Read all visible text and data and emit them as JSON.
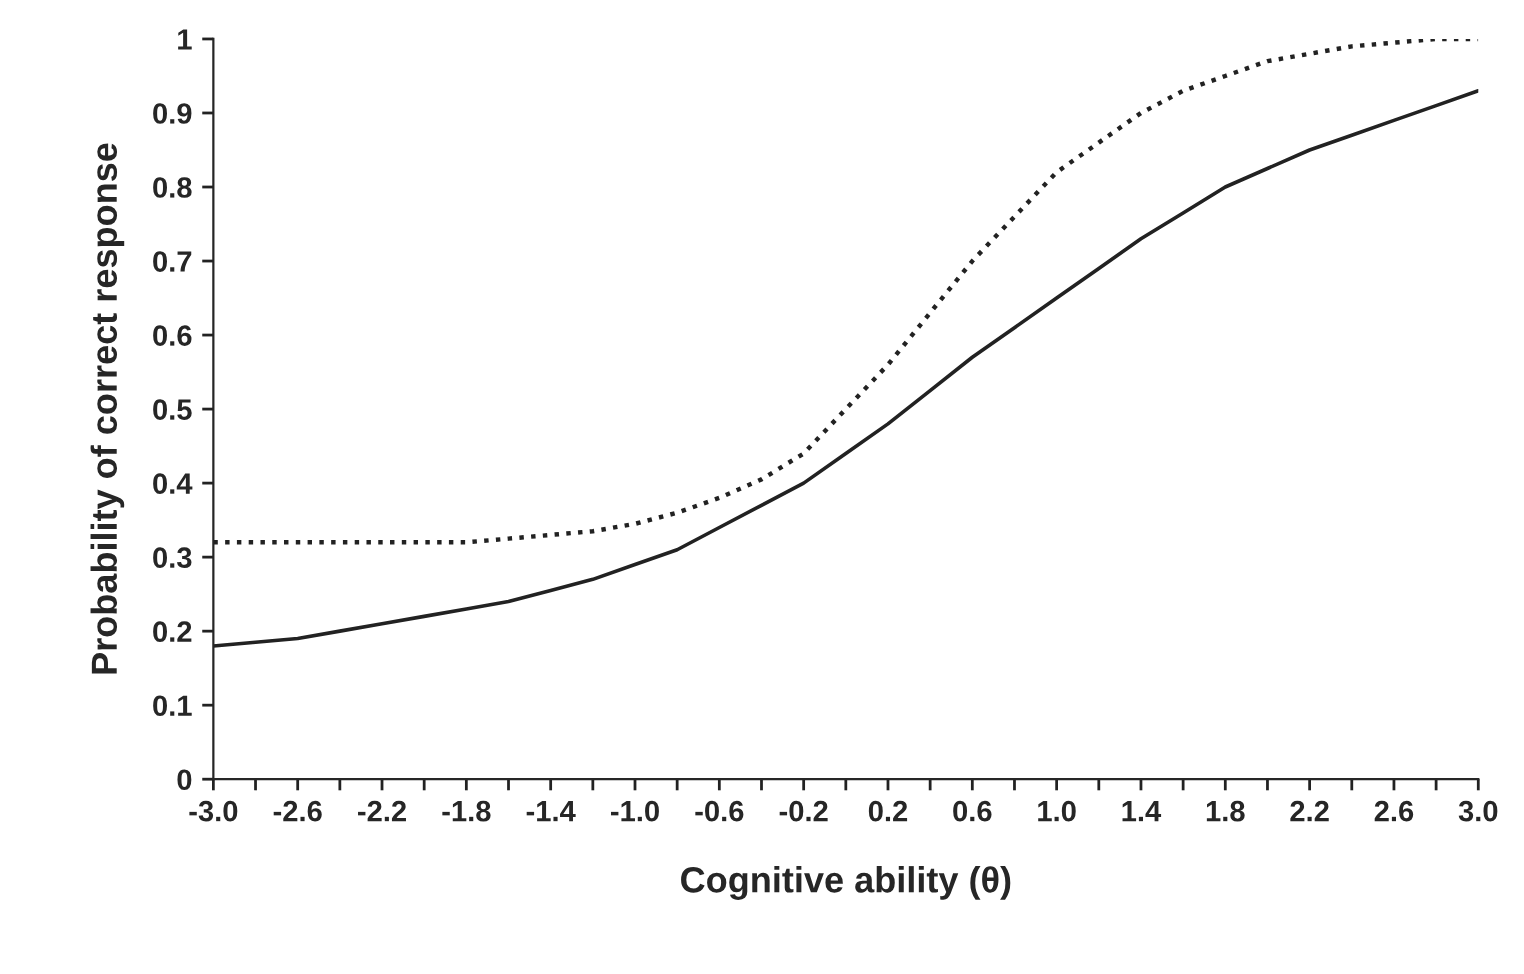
{
  "chart_data": {
    "type": "line",
    "xlabel": "Cognitive ability (θ)",
    "ylabel": "Probability of correct response",
    "x": [
      -3.0,
      -2.8,
      -2.6,
      -2.4,
      -2.2,
      -2.0,
      -1.8,
      -1.6,
      -1.4,
      -1.2,
      -1.0,
      -0.8,
      -0.6,
      -0.4,
      -0.2,
      0.0,
      0.2,
      0.4,
      0.6,
      0.8,
      1.0,
      1.2,
      1.4,
      1.6,
      1.8,
      2.0,
      2.2,
      2.4,
      2.6,
      2.8,
      3.0
    ],
    "series": [
      {
        "color": "#222222",
        "line_style": "solid",
        "values": [
          0.18,
          0.185,
          0.19,
          0.2,
          0.21,
          0.22,
          0.23,
          0.24,
          0.255,
          0.27,
          0.29,
          0.31,
          0.34,
          0.37,
          0.4,
          0.44,
          0.48,
          0.525,
          0.57,
          0.61,
          0.65,
          0.69,
          0.73,
          0.765,
          0.8,
          0.825,
          0.85,
          0.87,
          0.89,
          0.91,
          0.93
        ]
      },
      {
        "color": "#222222",
        "line_style": "dotted",
        "values": [
          0.32,
          0.32,
          0.32,
          0.32,
          0.32,
          0.32,
          0.32,
          0.325,
          0.33,
          0.335,
          0.345,
          0.36,
          0.38,
          0.405,
          0.44,
          0.5,
          0.56,
          0.63,
          0.7,
          0.76,
          0.82,
          0.86,
          0.9,
          0.93,
          0.95,
          0.97,
          0.98,
          0.99,
          0.995,
          1.0,
          1.0
        ]
      }
    ],
    "xlim": [
      -3.0,
      3.0
    ],
    "xticks": [
      {
        "value": -3.0,
        "label": "-3.0"
      },
      {
        "value": -2.8,
        "label": null
      },
      {
        "value": -2.6,
        "label": "-2.6"
      },
      {
        "value": -2.4,
        "label": null
      },
      {
        "value": -2.2,
        "label": "-2.2"
      },
      {
        "value": -2.0,
        "label": null
      },
      {
        "value": -1.8,
        "label": "-1.8"
      },
      {
        "value": -1.6,
        "label": null
      },
      {
        "value": -1.4,
        "label": "-1.4"
      },
      {
        "value": -1.2,
        "label": null
      },
      {
        "value": -1.0,
        "label": "-1.0"
      },
      {
        "value": -0.8,
        "label": null
      },
      {
        "value": -0.6,
        "label": "-0.6"
      },
      {
        "value": -0.4,
        "label": null
      },
      {
        "value": -0.2,
        "label": "-0.2"
      },
      {
        "value": 0.0,
        "label": null
      },
      {
        "value": 0.2,
        "label": "0.2"
      },
      {
        "value": 0.4,
        "label": null
      },
      {
        "value": 0.6,
        "label": "0.6"
      },
      {
        "value": 0.8,
        "label": null
      },
      {
        "value": 1.0,
        "label": "1.0"
      },
      {
        "value": 1.2,
        "label": null
      },
      {
        "value": 1.4,
        "label": "1.4"
      },
      {
        "value": 1.6,
        "label": null
      },
      {
        "value": 1.8,
        "label": "1.8"
      },
      {
        "value": 2.0,
        "label": null
      },
      {
        "value": 2.2,
        "label": "2.2"
      },
      {
        "value": 2.4,
        "label": null
      },
      {
        "value": 2.6,
        "label": "2.6"
      },
      {
        "value": 2.8,
        "label": null
      },
      {
        "value": 3.0,
        "label": "3.0"
      }
    ],
    "ylim": [
      0,
      1
    ],
    "yticks": [
      0,
      0.1,
      0.2,
      0.3,
      0.4,
      0.5,
      0.6,
      0.7,
      0.8,
      0.9,
      1
    ],
    "grid": false,
    "marker": "none"
  }
}
